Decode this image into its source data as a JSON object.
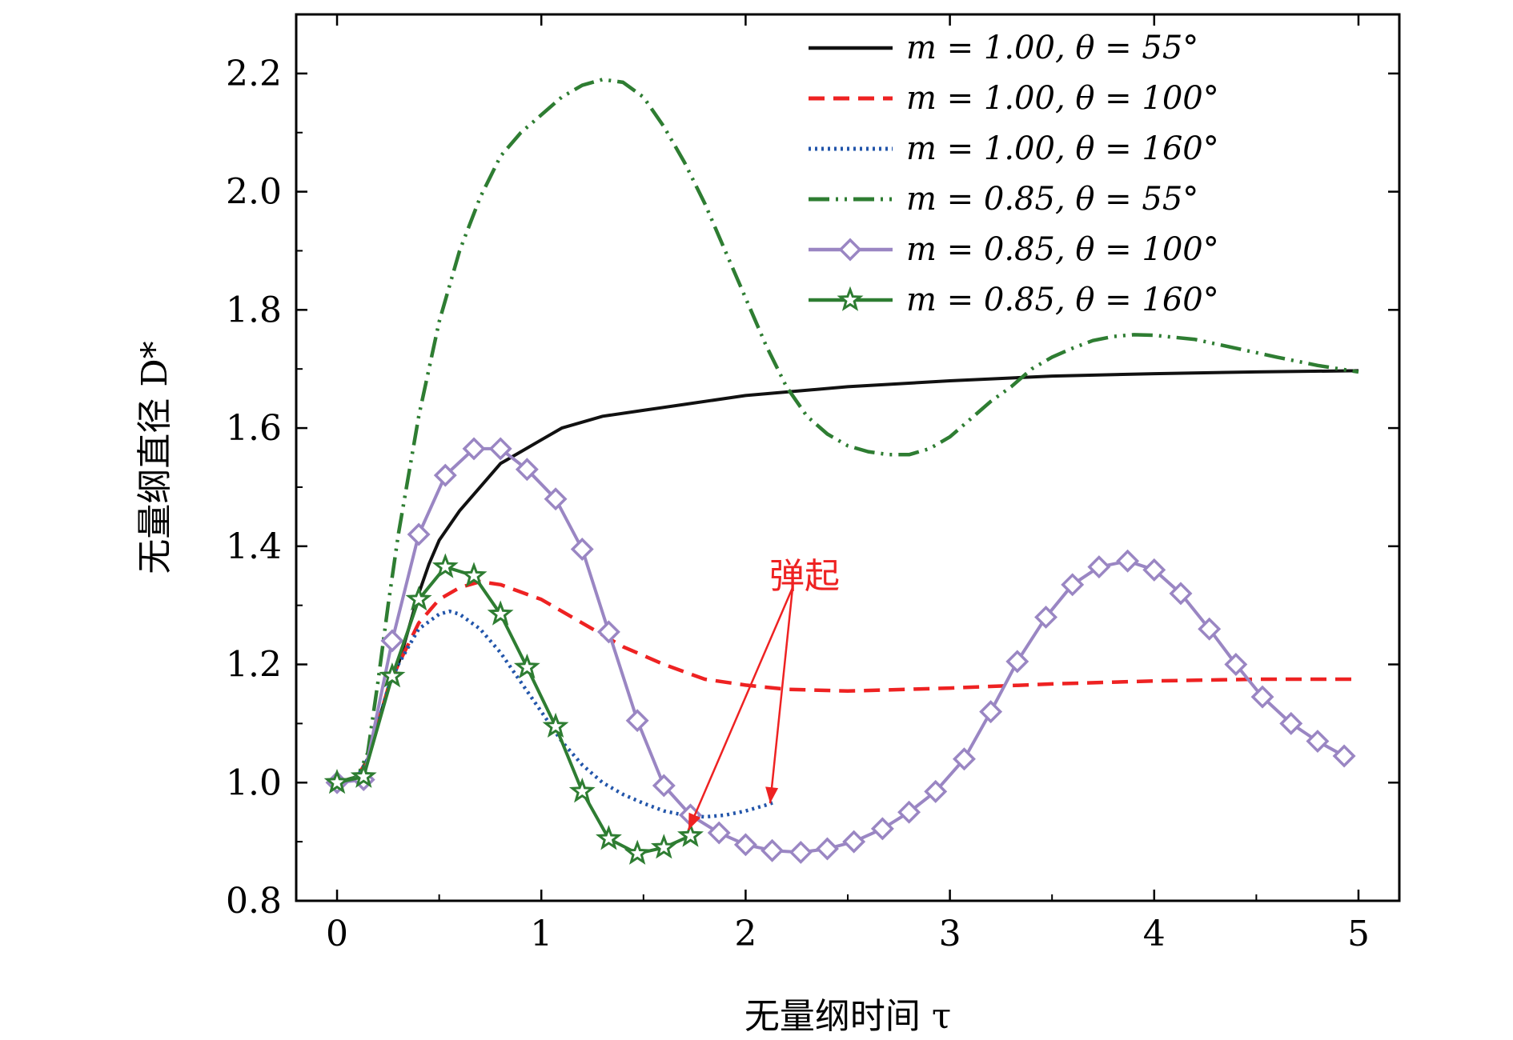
{
  "chart_data": {
    "type": "line",
    "xlabel": "无量纲时间 τ",
    "ylabel": "无量纲直径 D*",
    "xlim": [
      -0.2,
      5.2
    ],
    "ylim": [
      0.8,
      2.3
    ],
    "xticks": [
      0,
      1,
      2,
      3,
      4,
      5
    ],
    "xtick_labels": [
      "0",
      "1",
      "2",
      "3",
      "4",
      "5"
    ],
    "yticks": [
      0.8,
      1.0,
      1.2,
      1.4,
      1.6,
      1.8,
      2.0,
      2.2
    ],
    "ytick_labels": [
      "0.8",
      "1.0",
      "1.2",
      "1.4",
      "1.6",
      "1.8",
      "2.0",
      "2.2"
    ],
    "legend_position": "top-right",
    "grid": false,
    "annotation": {
      "text": "弹起",
      "x": 2.2,
      "y": 1.36
    },
    "series": [
      {
        "name": "m = 1.00, θ = 55°",
        "color": "#111111",
        "style": "solid",
        "marker": "none",
        "x": [
          0,
          0.1,
          0.15,
          0.2,
          0.25,
          0.3,
          0.35,
          0.4,
          0.45,
          0.5,
          0.6,
          0.7,
          0.8,
          0.9,
          1.0,
          1.1,
          1.2,
          1.3,
          1.5,
          1.7,
          2.0,
          2.5,
          3.0,
          3.5,
          4.0,
          4.5,
          5.0
        ],
        "y": [
          1.0,
          1.01,
          1.04,
          1.1,
          1.16,
          1.2,
          1.26,
          1.32,
          1.37,
          1.41,
          1.46,
          1.5,
          1.54,
          1.56,
          1.58,
          1.6,
          1.61,
          1.62,
          1.63,
          1.64,
          1.655,
          1.67,
          1.68,
          1.688,
          1.692,
          1.695,
          1.697
        ]
      },
      {
        "name": "m = 1.00, θ = 100°",
        "color": "#ee2222",
        "style": "dashed",
        "marker": "none",
        "x": [
          0,
          0.1,
          0.15,
          0.2,
          0.25,
          0.3,
          0.4,
          0.5,
          0.6,
          0.7,
          0.8,
          1.0,
          1.2,
          1.4,
          1.6,
          1.8,
          2.0,
          2.2,
          2.5,
          3.0,
          3.5,
          4.0,
          4.5,
          5.0
        ],
        "y": [
          1.0,
          1.01,
          1.04,
          1.1,
          1.16,
          1.2,
          1.27,
          1.31,
          1.33,
          1.34,
          1.335,
          1.31,
          1.27,
          1.23,
          1.2,
          1.175,
          1.165,
          1.158,
          1.155,
          1.16,
          1.167,
          1.172,
          1.175,
          1.175
        ]
      },
      {
        "name": "m = 1.00, θ = 160°",
        "color": "#2255aa",
        "style": "dotted",
        "marker": "none",
        "x": [
          0,
          0.1,
          0.15,
          0.2,
          0.25,
          0.3,
          0.4,
          0.5,
          0.55,
          0.6,
          0.7,
          0.8,
          0.9,
          1.0,
          1.1,
          1.2,
          1.3,
          1.4,
          1.5,
          1.6,
          1.7,
          1.8,
          1.9,
          2.0,
          2.1,
          2.15
        ],
        "y": [
          1.0,
          1.01,
          1.04,
          1.1,
          1.16,
          1.2,
          1.26,
          1.285,
          1.29,
          1.285,
          1.26,
          1.22,
          1.17,
          1.12,
          1.07,
          1.03,
          1.0,
          0.98,
          0.965,
          0.952,
          0.945,
          0.942,
          0.945,
          0.952,
          0.962,
          0.968
        ]
      },
      {
        "name": "m = 0.85, θ = 55°",
        "color": "#2e7d32",
        "style": "dashdotdot",
        "marker": "none",
        "x": [
          0,
          0.1,
          0.15,
          0.2,
          0.25,
          0.3,
          0.4,
          0.5,
          0.6,
          0.7,
          0.8,
          0.9,
          1.0,
          1.1,
          1.2,
          1.3,
          1.4,
          1.5,
          1.6,
          1.7,
          1.8,
          1.9,
          2.0,
          2.1,
          2.2,
          2.3,
          2.4,
          2.5,
          2.6,
          2.7,
          2.8,
          2.9,
          3.0,
          3.1,
          3.2,
          3.3,
          3.4,
          3.5,
          3.6,
          3.7,
          3.8,
          3.9,
          4.0,
          4.2,
          4.4,
          4.6,
          4.8,
          5.0
        ],
        "y": [
          1.0,
          1.01,
          1.05,
          1.17,
          1.3,
          1.42,
          1.62,
          1.78,
          1.9,
          1.99,
          2.06,
          2.1,
          2.13,
          2.16,
          2.18,
          2.19,
          2.185,
          2.16,
          2.11,
          2.05,
          1.98,
          1.9,
          1.82,
          1.74,
          1.67,
          1.62,
          1.59,
          1.57,
          1.56,
          1.555,
          1.555,
          1.565,
          1.585,
          1.615,
          1.645,
          1.67,
          1.7,
          1.72,
          1.735,
          1.748,
          1.755,
          1.758,
          1.757,
          1.75,
          1.735,
          1.72,
          1.706,
          1.695
        ]
      },
      {
        "name": "m = 0.85, θ = 100°",
        "color": "#9a86c3",
        "style": "solid",
        "marker": "diamond",
        "x": [
          0,
          0.13,
          0.27,
          0.4,
          0.53,
          0.67,
          0.8,
          0.93,
          1.07,
          1.2,
          1.33,
          1.47,
          1.6,
          1.73,
          1.87,
          2.0,
          2.13,
          2.27,
          2.4,
          2.53,
          2.67,
          2.8,
          2.93,
          3.07,
          3.2,
          3.33,
          3.47,
          3.6,
          3.73,
          3.87,
          4.0,
          4.13,
          4.27,
          4.4,
          4.53,
          4.67,
          4.8,
          4.93
        ],
        "y": [
          1.0,
          1.005,
          1.24,
          1.42,
          1.52,
          1.565,
          1.565,
          1.53,
          1.48,
          1.395,
          1.255,
          1.105,
          0.995,
          0.945,
          0.915,
          0.895,
          0.885,
          0.882,
          0.888,
          0.9,
          0.922,
          0.95,
          0.985,
          1.04,
          1.12,
          1.205,
          1.28,
          1.335,
          1.365,
          1.375,
          1.36,
          1.32,
          1.26,
          1.2,
          1.145,
          1.1,
          1.07,
          1.045
        ]
      },
      {
        "name": "m = 0.85, θ = 160°",
        "color": "#2e7d32",
        "style": "solid",
        "marker": "star",
        "x": [
          0,
          0.13,
          0.27,
          0.4,
          0.53,
          0.67,
          0.8,
          0.93,
          1.07,
          1.2,
          1.33,
          1.47,
          1.6,
          1.73
        ],
        "y": [
          1.0,
          1.01,
          1.18,
          1.31,
          1.365,
          1.35,
          1.285,
          1.195,
          1.095,
          0.985,
          0.905,
          0.88,
          0.89,
          0.91
        ]
      }
    ]
  }
}
